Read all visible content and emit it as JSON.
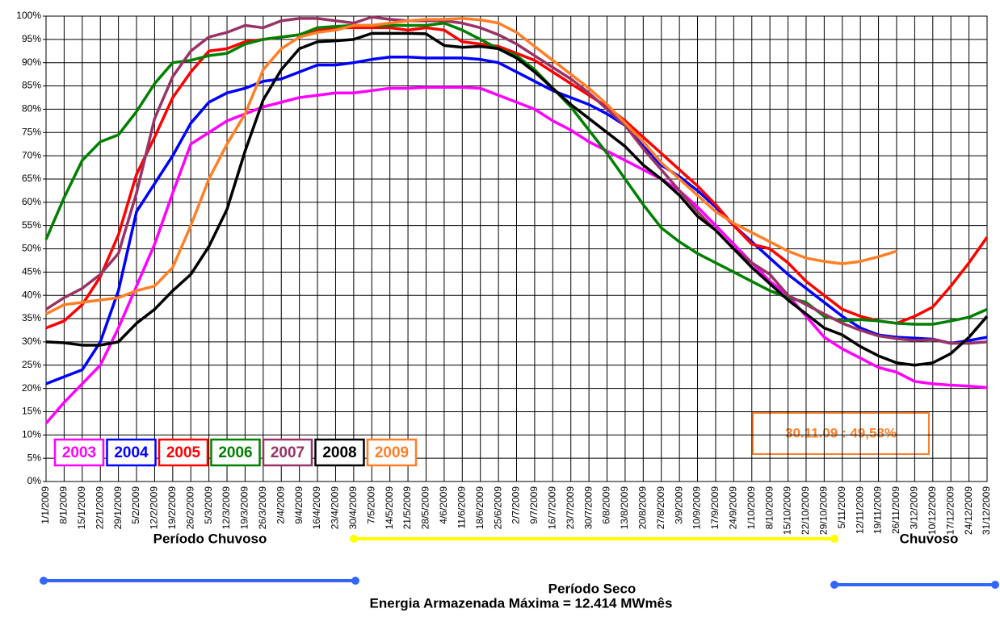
{
  "chart_data": {
    "type": "line",
    "categories": [
      "1/1/2009",
      "8/1/2009",
      "15/1/2009",
      "22/1/2009",
      "29/1/2009",
      "5/2/2009",
      "12/2/2009",
      "19/2/2009",
      "26/2/2009",
      "5/3/2009",
      "12/3/2009",
      "19/3/2009",
      "26/3/2009",
      "2/4/2009",
      "9/4/2009",
      "16/4/2009",
      "23/4/2009",
      "30/4/2009",
      "7/5/2009",
      "14/5/2009",
      "21/5/2009",
      "28/5/2009",
      "4/6/2009",
      "11/6/2009",
      "18/6/2009",
      "25/6/2009",
      "2/7/2009",
      "9/7/2009",
      "16/7/2009",
      "23/7/2009",
      "30/7/2009",
      "6/8/2009",
      "13/8/2009",
      "20/8/2009",
      "27/8/2009",
      "3/9/2009",
      "10/9/2009",
      "17/9/2009",
      "24/9/2009",
      "1/10/2009",
      "8/10/2009",
      "15/10/2009",
      "22/10/2009",
      "29/10/2009",
      "5/11/2009",
      "12/11/2009",
      "19/11/2009",
      "26/11/2009",
      "3/12/2009",
      "10/12/2009",
      "17/12/2009",
      "24/12/2009",
      "31/12/2009"
    ],
    "series": [
      {
        "name": "2003",
        "color": "#ff00ff",
        "values": [
          12.5,
          17,
          21,
          25,
          33,
          42,
          51,
          62,
          72.5,
          75,
          77.5,
          79,
          80.5,
          81.5,
          82.5,
          83,
          83.5,
          83.5,
          84,
          84.5,
          84.5,
          84.7,
          84.7,
          84.7,
          84.5,
          83,
          81.5,
          80,
          77.5,
          75.5,
          73,
          71,
          69,
          67,
          65,
          62.5,
          59,
          55,
          51,
          47,
          43,
          40,
          35.5,
          31,
          28.5,
          26.5,
          24.5,
          23.5,
          21.5,
          21,
          20.7,
          20.5,
          20.2
        ]
      },
      {
        "name": "2004",
        "color": "#0000ff",
        "values": [
          21,
          22.5,
          24,
          30,
          41,
          58,
          64,
          70,
          77,
          81.5,
          83.5,
          84.5,
          86,
          86.5,
          88,
          89.5,
          89.5,
          90,
          90.7,
          91.2,
          91.2,
          91,
          91,
          91,
          90.7,
          90,
          88,
          86,
          84,
          82.5,
          81,
          79,
          76.5,
          72,
          68,
          65.5,
          62.5,
          59,
          55,
          51.5,
          48,
          44.5,
          41.5,
          38.5,
          35.5,
          33,
          31.5,
          31,
          30.8,
          30.6,
          29.7,
          30.3,
          31
        ]
      },
      {
        "name": "2005",
        "color": "#ff0000",
        "values": [
          33,
          34.5,
          38,
          44,
          53,
          66,
          74,
          82.5,
          88,
          92.5,
          93,
          94.5,
          95,
          95.5,
          96,
          97,
          97.5,
          97.5,
          97.5,
          97.5,
          97,
          97.5,
          97,
          94.5,
          94,
          93.5,
          92,
          90.5,
          88,
          85.5,
          83,
          80.5,
          77.5,
          74,
          70.5,
          67,
          63.5,
          59.5,
          55,
          51,
          50,
          47,
          43,
          40,
          37,
          35.5,
          34.5,
          34,
          35.5,
          37.5,
          42,
          47,
          52.5
        ]
      },
      {
        "name": "2006",
        "color": "#008000",
        "values": [
          52,
          61,
          69,
          73,
          74.5,
          79.5,
          85.5,
          90,
          90.5,
          91.5,
          92,
          94,
          95,
          95.5,
          96,
          97.5,
          97.8,
          98,
          98,
          98,
          98,
          98,
          98.5,
          97,
          95,
          93,
          91.5,
          88.5,
          84.5,
          80.5,
          75.5,
          70.5,
          65,
          59.5,
          54.5,
          51.5,
          49,
          47,
          45,
          43,
          41,
          39.5,
          38.5,
          35.5,
          34.5,
          34.8,
          34.5,
          34,
          33.8,
          33.8,
          34.5,
          35.3,
          37
        ]
      },
      {
        "name": "2007",
        "color": "#993366",
        "values": [
          37,
          39.5,
          41.5,
          44.5,
          49,
          62,
          78,
          87,
          92.5,
          95.5,
          96.5,
          98,
          97.5,
          99,
          99.5,
          99.5,
          99,
          98.5,
          99.8,
          99.3,
          99,
          99,
          99,
          98.5,
          97.5,
          96,
          94,
          91.5,
          89,
          86.5,
          83.5,
          80,
          76.5,
          71.5,
          67,
          62.5,
          58,
          54,
          50,
          47,
          44.5,
          40,
          38,
          36,
          34,
          32.5,
          31.3,
          30.7,
          30.3,
          30.5,
          29.7,
          29.7,
          30
        ]
      },
      {
        "name": "2008",
        "color": "#000000",
        "values": [
          30,
          29.8,
          29.3,
          29.3,
          30,
          34,
          37,
          41,
          44.5,
          50.5,
          58.5,
          71,
          82,
          88.5,
          93,
          94.5,
          94.7,
          95,
          96.3,
          96.3,
          96.3,
          96.2,
          93.7,
          93.3,
          93.5,
          93,
          91,
          88,
          84.5,
          81,
          78,
          75,
          72,
          68,
          65,
          61.5,
          57,
          54,
          50,
          46,
          42.5,
          39,
          36,
          33,
          31.5,
          29,
          27,
          25.5,
          25,
          25.5,
          27.5,
          31,
          35.5
        ]
      },
      {
        "name": "2009",
        "color": "#ff7f27",
        "values": [
          36,
          38,
          38.5,
          39,
          39.5,
          41,
          42,
          46,
          55,
          65,
          72.5,
          79,
          88.5,
          93,
          95.5,
          96.5,
          97,
          98,
          98,
          98.5,
          99,
          99.3,
          99.3,
          99.5,
          99.2,
          98.5,
          96.5,
          93.5,
          90.5,
          87.5,
          84.5,
          81,
          77,
          73,
          68.5,
          65,
          61.5,
          58,
          55.5,
          53.5,
          51.5,
          49.5,
          48,
          47.3,
          46.8,
          47.3,
          48.3,
          49.5,
          null,
          null,
          null,
          null,
          null
        ]
      }
    ],
    "ylim": [
      0,
      100
    ],
    "yticks": [
      {
        "value": 0,
        "label": "0%"
      },
      {
        "value": 5,
        "label": "5%"
      },
      {
        "value": 10,
        "label": "10%"
      },
      {
        "value": 15,
        "label": "15%"
      },
      {
        "value": 20,
        "label": "20%"
      },
      {
        "value": 25,
        "label": "25%"
      },
      {
        "value": 30,
        "label": "30%"
      },
      {
        "value": 35,
        "label": "35%"
      },
      {
        "value": 40,
        "label": "40%"
      },
      {
        "value": 45,
        "label": "45%"
      },
      {
        "value": 50,
        "label": "50%"
      },
      {
        "value": 55,
        "label": "55%"
      },
      {
        "value": 60,
        "label": "60%"
      },
      {
        "value": 65,
        "label": "65%"
      },
      {
        "value": 70,
        "label": "70%"
      },
      {
        "value": 75,
        "label": "75%"
      },
      {
        "value": 80,
        "label": "80%"
      },
      {
        "value": 85,
        "label": "85%"
      },
      {
        "value": 90,
        "label": "90%"
      },
      {
        "value": 95,
        "label": "95%"
      },
      {
        "value": 100,
        "label": "100%"
      }
    ],
    "grid": true,
    "legend": "lower left",
    "note": "30.11.09 : 49,58%",
    "periods": [
      "Período Chuvoso",
      "Período Seco",
      "Chuvoso"
    ],
    "caption": "Energia Armazenada Máxima = 12.414 MWmês"
  }
}
